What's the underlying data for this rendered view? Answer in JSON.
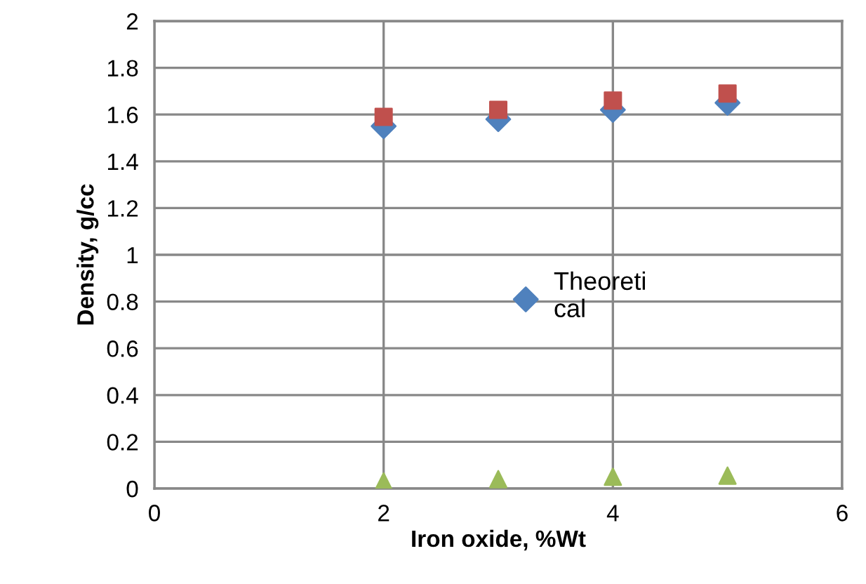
{
  "chart_data": {
    "type": "scatter",
    "xlabel": "Iron oxide, %Wt",
    "ylabel": "Density, g/cc",
    "x": [
      2,
      3,
      4,
      5
    ],
    "series": [
      {
        "name": "Theoreti\ncal",
        "color": "#4f81bd",
        "marker": "diamond",
        "values": [
          1.55,
          1.58,
          1.62,
          1.65
        ]
      },
      {
        "color": "#c0504d",
        "marker": "square",
        "values": [
          1.59,
          1.62,
          1.66,
          1.69
        ]
      },
      {
        "color": "#9bbb59",
        "marker": "triangle",
        "values": [
          0.03,
          0.04,
          0.05,
          0.055
        ]
      }
    ],
    "xlim": [
      0,
      6
    ],
    "xticks": [
      0,
      2,
      4,
      6
    ],
    "ylim": [
      0,
      2
    ],
    "yticks": [
      0,
      0.2,
      0.4,
      0.6,
      0.8,
      1,
      1.2,
      1.4,
      1.6,
      1.8,
      2
    ],
    "grid": true,
    "legend": "center"
  }
}
